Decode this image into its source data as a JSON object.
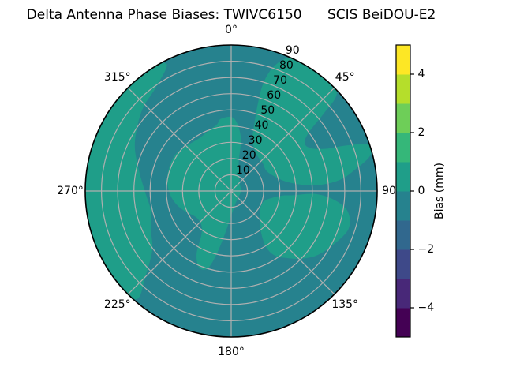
{
  "chart_data": {
    "type": "polar_contour",
    "title": "Delta Antenna Phase Biases: TWIVC6150      SCIS BeiDOU-E2",
    "angular_unit": "degrees clockwise from top",
    "angular_ticks": [
      {
        "value": 0,
        "label": "0°"
      },
      {
        "value": 45,
        "label": "45°"
      },
      {
        "value": 90,
        "label": "90"
      },
      {
        "value": 135,
        "label": "135°"
      },
      {
        "value": 180,
        "label": "180°"
      },
      {
        "value": 225,
        "label": "225°"
      },
      {
        "value": 270,
        "label": "270°"
      },
      {
        "value": 315,
        "label": "315°"
      }
    ],
    "radial_ticks": [
      {
        "value": 10,
        "label": "10"
      },
      {
        "value": 20,
        "label": "20"
      },
      {
        "value": 30,
        "label": "30"
      },
      {
        "value": 40,
        "label": "40"
      },
      {
        "value": 50,
        "label": "50"
      },
      {
        "value": 60,
        "label": "60"
      },
      {
        "value": 70,
        "label": "70"
      },
      {
        "value": 80,
        "label": "80"
      },
      {
        "value": 90,
        "label": "90"
      }
    ],
    "r_max": 90,
    "radial_label_angle": 22.5,
    "grid": true,
    "grid_color": "#b0b0b0",
    "colorbar": {
      "label": "Bias (mm)",
      "min": -5,
      "max": 5,
      "ticks": [
        {
          "value": 4,
          "label": "4"
        },
        {
          "value": 2,
          "label": "2"
        },
        {
          "value": 0,
          "label": "0"
        },
        {
          "value": -2,
          "label": "−2"
        },
        {
          "value": -4,
          "label": "−4"
        }
      ],
      "segment_colors_bottom_to_top": [
        "#440154",
        "#482878",
        "#3e4989",
        "#31688e",
        "#26828e",
        "#1f9e89",
        "#35b779",
        "#6ece58",
        "#b5de2b",
        "#fde725"
      ]
    },
    "base_region": {
      "name": "background-level",
      "bias_range_mm": "-1 to 0",
      "color": "#26828e"
    },
    "regions": [
      {
        "name": "west-outer-band",
        "bias_range_mm": "0 to 1",
        "color": "#1f9e89",
        "outline_polar_theta_r": [
          [
            333,
            88
          ],
          [
            322,
            93
          ],
          [
            309,
            93
          ],
          [
            295,
            93
          ],
          [
            281,
            93
          ],
          [
            267,
            93
          ],
          [
            253,
            93
          ],
          [
            239,
            93
          ],
          [
            228,
            92
          ],
          [
            221,
            88
          ],
          [
            225,
            75
          ],
          [
            233,
            61
          ],
          [
            244,
            55
          ],
          [
            256,
            51
          ],
          [
            269,
            53
          ],
          [
            282,
            58
          ],
          [
            294,
            65
          ],
          [
            304,
            70
          ],
          [
            314,
            75
          ],
          [
            324,
            79
          ]
        ]
      },
      {
        "name": "center-blob",
        "bias_range_mm": "0 to 1",
        "color": "#1f9e89",
        "outline_polar_theta_r": [
          [
            352,
            45
          ],
          [
            2,
            45
          ],
          [
            10,
            34
          ],
          [
            15,
            18
          ],
          [
            40,
            8
          ],
          [
            90,
            6
          ],
          [
            135,
            6
          ],
          [
            160,
            8
          ],
          [
            172,
            11
          ],
          [
            181,
            16
          ],
          [
            188,
            26
          ],
          [
            193,
            40
          ],
          [
            197,
            50
          ],
          [
            203,
            51
          ],
          [
            209,
            44
          ],
          [
            214,
            33
          ],
          [
            221,
            28
          ],
          [
            233,
            27
          ],
          [
            246,
            31
          ],
          [
            257,
            35
          ],
          [
            268,
            38
          ],
          [
            280,
            40
          ],
          [
            292,
            41
          ],
          [
            304,
            41
          ],
          [
            316,
            39
          ],
          [
            328,
            38
          ],
          [
            341,
            40
          ],
          [
            348,
            42
          ]
        ]
      },
      {
        "name": "northeast-blob",
        "bias_range_mm": "0 to 1",
        "color": "#1f9e89",
        "outline_polar_theta_r": [
          [
            18,
            78
          ],
          [
            21,
            86
          ],
          [
            25,
            91
          ],
          [
            31,
            93
          ],
          [
            38,
            93
          ],
          [
            44,
            92
          ],
          [
            48,
            87
          ],
          [
            50,
            75
          ],
          [
            53,
            60
          ],
          [
            57,
            54
          ],
          [
            62,
            56
          ],
          [
            66,
            64
          ],
          [
            68,
            74
          ],
          [
            70,
            84
          ],
          [
            72,
            90
          ],
          [
            76,
            88
          ],
          [
            80,
            78
          ],
          [
            84,
            68
          ],
          [
            86,
            56
          ],
          [
            85,
            44
          ],
          [
            80,
            34
          ],
          [
            71,
            28
          ],
          [
            60,
            25
          ],
          [
            48,
            26
          ],
          [
            37,
            27
          ],
          [
            28,
            30
          ],
          [
            22,
            35
          ],
          [
            19,
            44
          ],
          [
            17,
            56
          ],
          [
            16.5,
            68
          ]
        ]
      },
      {
        "name": "southeast-blob",
        "bias_range_mm": "0 to 1",
        "color": "#1f9e89",
        "outline_polar_theta_r": [
          [
            94,
            38
          ],
          [
            92,
            52
          ],
          [
            95,
            64
          ],
          [
            100,
            73
          ],
          [
            108,
            76
          ],
          [
            118,
            71
          ],
          [
            127,
            66
          ],
          [
            134,
            60
          ],
          [
            140,
            54
          ],
          [
            146,
            48
          ],
          [
            148,
            40
          ],
          [
            143,
            30
          ],
          [
            133,
            24
          ],
          [
            121,
            21
          ],
          [
            108,
            21
          ],
          [
            99,
            26
          ],
          [
            95,
            32
          ]
        ]
      }
    ]
  }
}
